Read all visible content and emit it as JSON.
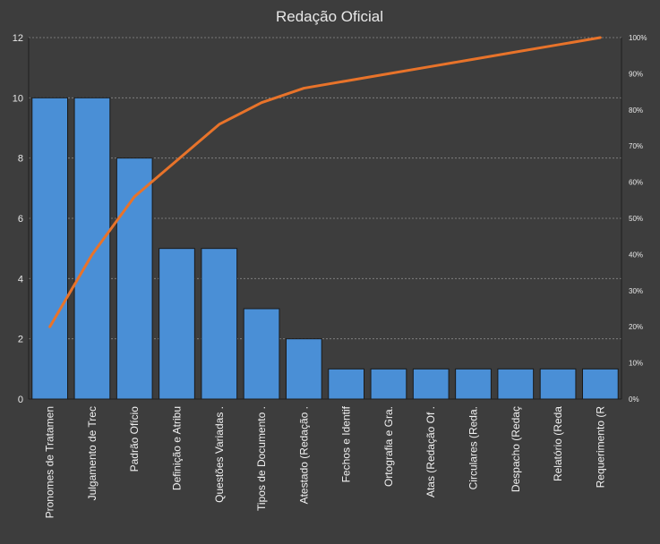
{
  "chart_data": {
    "type": "bar",
    "title": "Redação  Oficial",
    "categories": [
      "Pronomes de Tratamen",
      "Julgamento de Trec",
      "Padrão Ofício",
      "Definição e Atribu",
      "Questões Variadas .",
      "Tipos de Documento .",
      "Atestado (Redação .",
      "Fechos e Identif",
      "Ortografia e Gra.",
      "Atas (Redação Of .",
      "Circulares (Reda.",
      "Despacho (Redaç",
      "Relatório (Reda",
      "Requerimento (R"
    ],
    "series": [
      {
        "values": [
          10,
          10,
          8,
          5,
          5,
          3,
          2,
          1,
          1,
          1,
          1,
          1,
          1,
          1
        ]
      },
      {
        "axis": "secondary",
        "type": "line",
        "values": [
          0.2,
          0.4,
          0.56,
          0.66,
          0.76,
          0.82,
          0.86,
          0.88,
          0.9,
          0.92,
          0.94,
          0.96,
          0.98,
          1.0
        ]
      }
    ],
    "ylim": [
      0,
      12
    ],
    "yticks": [
      "0",
      "2",
      "4",
      "6",
      "8",
      "10",
      "12"
    ],
    "y2lim": [
      0,
      1
    ],
    "y2ticks": [
      "0%",
      "10%",
      "20%",
      "30%",
      "40%",
      "50%",
      "60%",
      "70%",
      "80%",
      "90%",
      "100%"
    ],
    "grid": true,
    "colors": {
      "background": "#3d3d3d",
      "bar": "#4a8fd6",
      "bar_stroke": "#1a1a1a",
      "line": "#e8732a",
      "grid": "#8a8a8a",
      "text": "#e8e8e8"
    }
  }
}
